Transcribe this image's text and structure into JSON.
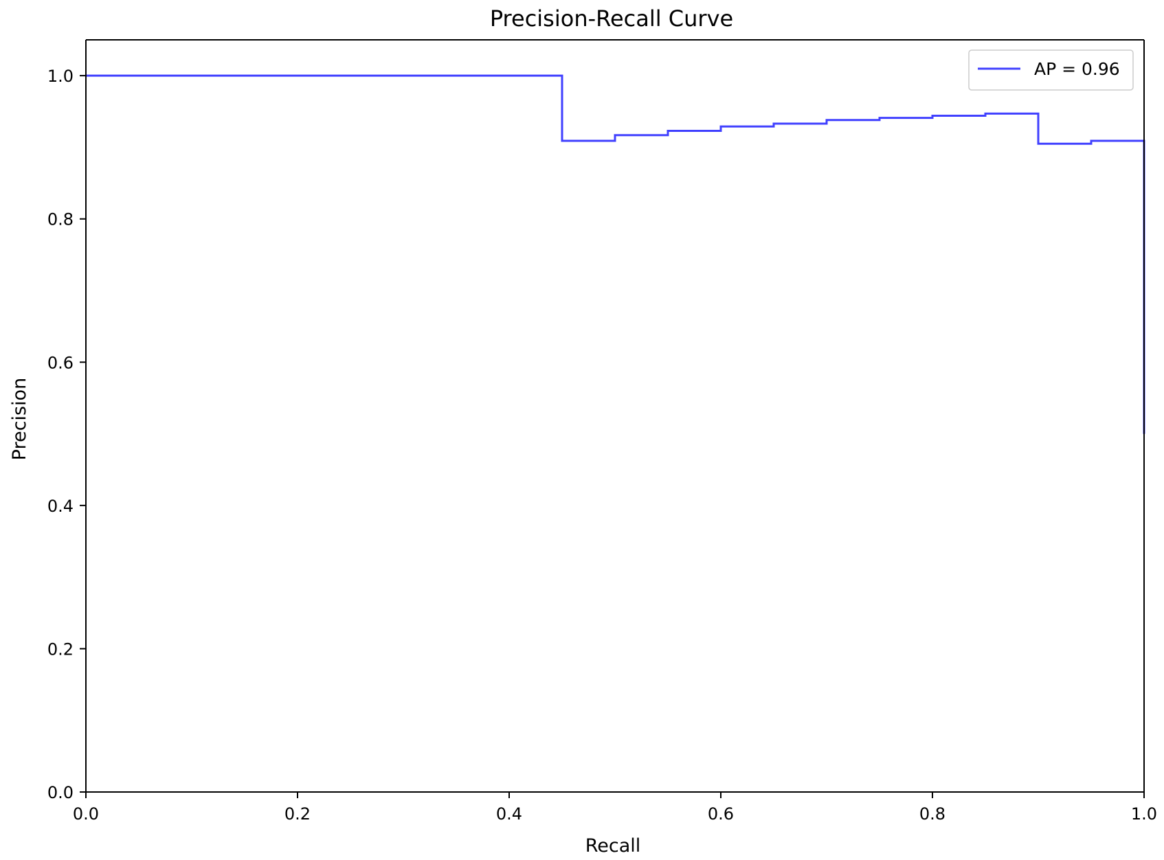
{
  "chart_data": {
    "type": "line",
    "title": "Precision-Recall Curve",
    "xlabel": "Recall",
    "ylabel": "Precision",
    "xlim": [
      0.0,
      1.0
    ],
    "ylim": [
      0.0,
      1.05
    ],
    "xticks": [
      0.0,
      0.2,
      0.4,
      0.6,
      0.8,
      1.0
    ],
    "xtick_labels": [
      "0.0",
      "0.2",
      "0.4",
      "0.6",
      "0.8",
      "1.0"
    ],
    "yticks": [
      0.0,
      0.2,
      0.4,
      0.6,
      0.8,
      1.0
    ],
    "ytick_labels": [
      "0.0",
      "0.2",
      "0.4",
      "0.6",
      "0.8",
      "1.0"
    ],
    "grid": false,
    "legend_position": "top-right",
    "series": [
      {
        "name": "AP = 0.96",
        "color": "#4040ff",
        "step": "post",
        "x": [
          0.0,
          0.45,
          0.45,
          0.5,
          0.55,
          0.6,
          0.65,
          0.7,
          0.75,
          0.8,
          0.85,
          0.9,
          0.9,
          0.95,
          1.0,
          1.0
        ],
        "y": [
          1.0,
          1.0,
          0.909,
          0.917,
          0.923,
          0.929,
          0.933,
          0.938,
          0.941,
          0.944,
          0.947,
          0.947,
          0.905,
          0.909,
          0.909,
          0.5
        ]
      }
    ]
  }
}
